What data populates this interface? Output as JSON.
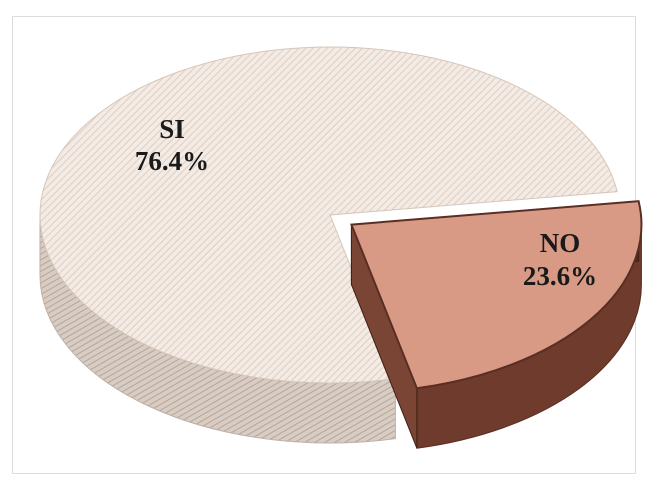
{
  "chart_data": {
    "type": "pie",
    "title": "",
    "slices": [
      {
        "label": "SI",
        "value": 76.4,
        "display": "76.4%",
        "color": "#efe6df",
        "side_color": "#c9bcb2",
        "exploded": false
      },
      {
        "label": "NO",
        "value": 23.6,
        "display": "23.6%",
        "color": "#d89a85",
        "side_color": "#6e3b2c",
        "exploded": true
      }
    ],
    "legend": "none",
    "style": "3d-exploded"
  }
}
